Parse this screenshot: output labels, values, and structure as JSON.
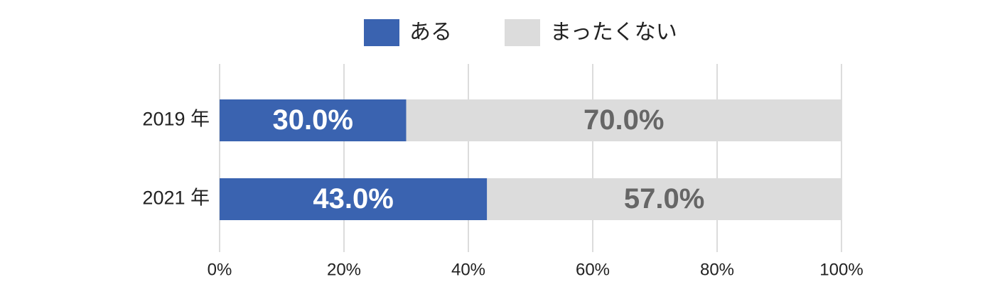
{
  "chart_data": {
    "type": "stacked-bar-horizontal",
    "categories": [
      "2019 年",
      "2021 年"
    ],
    "series": [
      {
        "name": "ある",
        "color": "#3a63b0",
        "values": [
          30,
          43
        ],
        "value_labels": [
          "30.0%",
          "43.0%"
        ],
        "label_color": "#ffffff"
      },
      {
        "name": "まったくない",
        "color": "#dcdcdc",
        "values": [
          70,
          57
        ],
        "value_labels": [
          "70.0%",
          "57.0%"
        ],
        "label_color": "#666666"
      }
    ],
    "xlim": [
      0,
      100
    ],
    "xticks": [
      {
        "value": 0,
        "label": "0%"
      },
      {
        "value": 20,
        "label": "20%"
      },
      {
        "value": 40,
        "label": "40%"
      },
      {
        "value": 60,
        "label": "60%"
      },
      {
        "value": 80,
        "label": "80%"
      },
      {
        "value": 100,
        "label": "100%"
      }
    ],
    "grid": true,
    "legend": "top"
  }
}
